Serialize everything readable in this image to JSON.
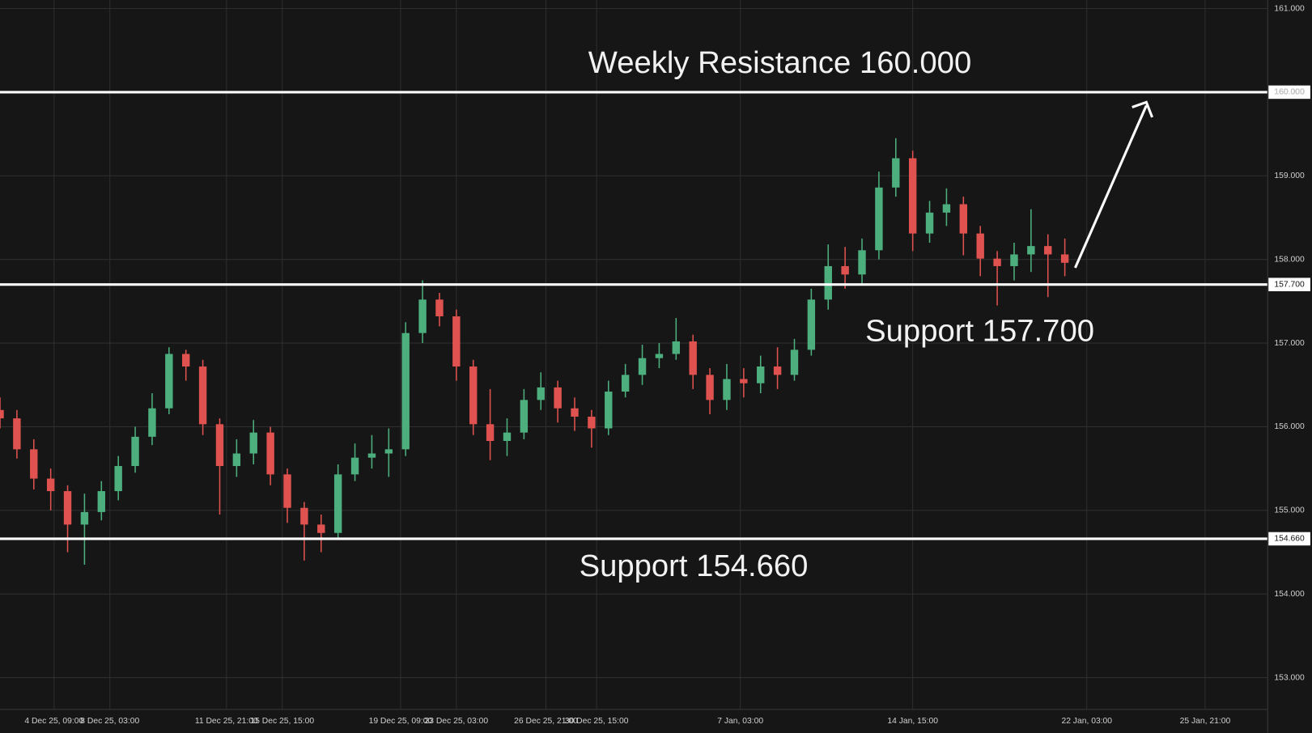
{
  "chart_data": {
    "type": "candlestick",
    "x": [
      0,
      1,
      2,
      3,
      4,
      5,
      6,
      7,
      8,
      9,
      10,
      11,
      12,
      13,
      14,
      15,
      16,
      17,
      18,
      19,
      20,
      21,
      22,
      23,
      24,
      25,
      26,
      27,
      28,
      29,
      30,
      31,
      32,
      33,
      34,
      35,
      36,
      37,
      38,
      39,
      40,
      41,
      42,
      43,
      44,
      45,
      46,
      47,
      48,
      49,
      50,
      51,
      52,
      53,
      54,
      55,
      56,
      57,
      58,
      59,
      60,
      61,
      62,
      63
    ],
    "open": [
      156.2,
      156.1,
      155.73,
      155.38,
      155.23,
      154.83,
      154.98,
      155.23,
      155.53,
      155.88,
      156.22,
      156.87,
      156.72,
      156.03,
      155.53,
      155.68,
      155.93,
      155.43,
      155.03,
      154.83,
      154.73,
      155.43,
      155.63,
      155.68,
      155.73,
      157.12,
      157.52,
      157.32,
      156.72,
      156.03,
      155.83,
      155.93,
      156.32,
      156.47,
      156.22,
      156.12,
      155.98,
      156.42,
      156.62,
      156.82,
      156.87,
      157.02,
      156.62,
      156.32,
      156.57,
      156.52,
      156.72,
      156.62,
      156.92,
      157.52,
      157.92,
      157.82,
      158.11,
      158.86,
      159.21,
      158.31,
      158.56,
      158.66,
      158.31,
      158.01,
      157.92,
      158.06,
      158.16,
      158.06
    ],
    "high": [
      156.35,
      156.2,
      155.85,
      155.5,
      155.3,
      155.2,
      155.35,
      155.65,
      156.0,
      156.4,
      156.95,
      156.92,
      156.8,
      156.1,
      155.85,
      156.08,
      156.0,
      155.5,
      155.1,
      154.95,
      155.55,
      155.8,
      155.9,
      155.98,
      157.25,
      157.75,
      157.6,
      157.4,
      156.8,
      156.45,
      156.1,
      156.45,
      156.65,
      156.55,
      156.35,
      156.2,
      156.55,
      156.75,
      156.98,
      157.0,
      157.3,
      157.1,
      156.7,
      156.75,
      156.7,
      156.85,
      156.95,
      157.05,
      157.65,
      158.18,
      158.15,
      158.25,
      159.05,
      159.45,
      159.3,
      158.7,
      158.85,
      158.75,
      158.4,
      158.1,
      158.2,
      158.6,
      158.3,
      158.25
    ],
    "low": [
      155.98,
      155.62,
      155.25,
      155.0,
      154.5,
      154.35,
      154.88,
      155.12,
      155.45,
      155.78,
      156.15,
      156.55,
      155.9,
      154.95,
      155.4,
      155.55,
      155.3,
      154.85,
      154.4,
      154.5,
      154.65,
      155.35,
      155.5,
      155.4,
      155.65,
      157.0,
      157.2,
      156.55,
      155.9,
      155.6,
      155.65,
      155.85,
      156.2,
      156.05,
      155.95,
      155.75,
      155.9,
      156.35,
      156.5,
      156.7,
      156.8,
      156.45,
      156.15,
      156.2,
      156.35,
      156.4,
      156.45,
      156.55,
      156.85,
      157.4,
      157.65,
      157.7,
      158.0,
      158.75,
      158.1,
      158.2,
      158.4,
      158.05,
      157.8,
      157.45,
      157.75,
      157.85,
      157.55,
      157.8
    ],
    "close": [
      156.1,
      155.73,
      155.38,
      155.23,
      154.83,
      154.98,
      155.23,
      155.53,
      155.88,
      156.22,
      156.87,
      156.72,
      156.03,
      155.53,
      155.68,
      155.93,
      155.43,
      155.03,
      154.83,
      154.73,
      155.43,
      155.63,
      155.68,
      155.73,
      157.12,
      157.52,
      157.32,
      156.72,
      156.03,
      155.83,
      155.93,
      156.32,
      156.47,
      156.22,
      156.12,
      155.98,
      156.42,
      156.62,
      156.82,
      156.87,
      157.02,
      156.62,
      156.32,
      156.57,
      156.52,
      156.72,
      156.62,
      156.92,
      157.52,
      157.92,
      157.82,
      158.11,
      158.86,
      159.21,
      158.31,
      158.56,
      158.66,
      158.31,
      158.01,
      157.92,
      158.06,
      158.16,
      158.06,
      157.96
    ],
    "up_color": "#4caf7d",
    "down_color": "#e0524f",
    "xlim": [
      0,
      75
    ],
    "xticks": [
      {
        "value": 3.2,
        "label": "4 Dec 25, 09:00"
      },
      {
        "value": 6.5,
        "label": "8 Dec 25, 03:00"
      },
      {
        "value": 13.4,
        "label": "11 Dec 25, 21:00"
      },
      {
        "value": 16.7,
        "label": "15 Dec 25, 15:00"
      },
      {
        "value": 23.7,
        "label": "19 Dec 25, 09:00"
      },
      {
        "value": 27,
        "label": "23 Dec 25, 03:00"
      },
      {
        "value": 32.3,
        "label": "26 Dec 25, 21:00"
      },
      {
        "value": 35.3,
        "label": "30 Dec 25, 15:00"
      },
      {
        "value": 43.8,
        "label": "7 Jan, 03:00"
      },
      {
        "value": 54,
        "label": "14 Jan, 15:00"
      },
      {
        "value": 64.3,
        "label": "22 Jan, 03:00"
      },
      {
        "value": 71.3,
        "label": "25 Jan, 21:00"
      }
    ],
    "ylim": [
      152.62,
      161.1
    ],
    "yticks": [
      {
        "value": 153,
        "label": "153.000"
      },
      {
        "value": 154,
        "label": "154.000"
      },
      {
        "value": 155,
        "label": "155.000"
      },
      {
        "value": 156,
        "label": "156.000"
      },
      {
        "value": 157,
        "label": "157.000"
      },
      {
        "value": 158,
        "label": "158.000"
      },
      {
        "value": 159,
        "label": "159.000"
      },
      {
        "value": 160,
        "label": "160.000"
      },
      {
        "value": 161,
        "label": "161.000"
      }
    ],
    "grid": true,
    "levels": [
      {
        "value": 160,
        "label": "160.000"
      },
      {
        "value": 157.7,
        "label": "157.700"
      },
      {
        "value": 154.66,
        "label": "154.660"
      }
    ],
    "annotations": [
      "Weekly Resistance 160.000",
      "Support 157.700",
      "Support 154.660"
    ]
  }
}
